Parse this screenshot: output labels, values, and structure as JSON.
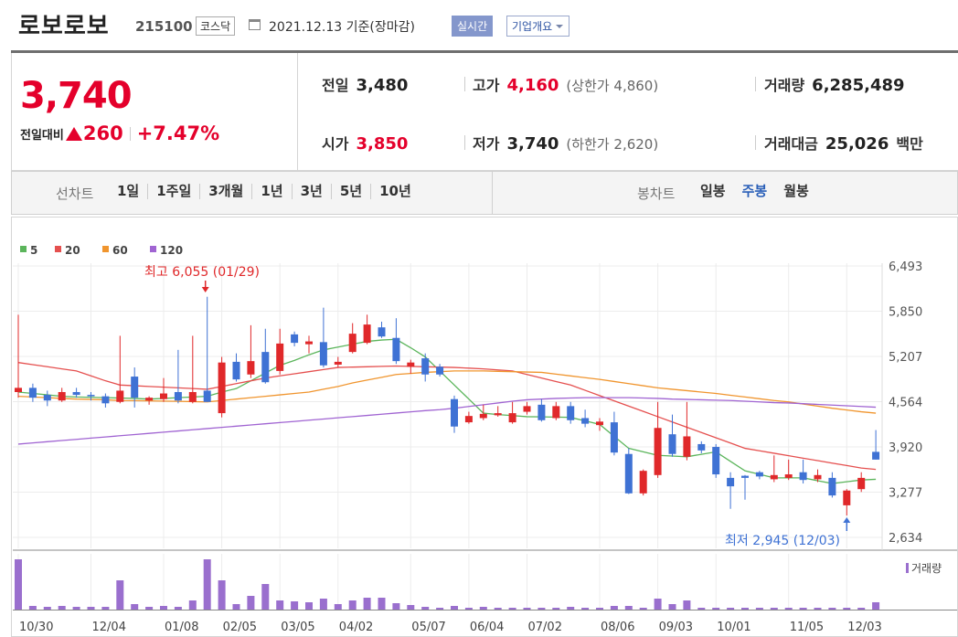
{
  "header": {
    "name": "로보로보",
    "code": "215100",
    "market": "코스닥",
    "date": "2021.12.13 기준(장마감)",
    "realtime": "실시간",
    "overview": "기업개요"
  },
  "quote": {
    "price": "3,740",
    "change_label": "전일대비",
    "change": "260",
    "change_pct": "+7.47%"
  },
  "info": [
    {
      "label": "전일",
      "value": "3,480"
    },
    {
      "label": "고가",
      "value": "4,160",
      "note": "(상한가 4,860)"
    },
    {
      "label": "거래량",
      "value": "6,285,489"
    },
    {
      "label": "시가",
      "value": "3,850"
    },
    {
      "label": "저가",
      "value": "3,740",
      "note": "(하한가 2,620)"
    },
    {
      "label": "거래대금",
      "value": "25,026",
      "unit": "백만"
    }
  ],
  "tabs": {
    "line_label": "선차트",
    "line_periods": [
      "1일",
      "1주일",
      "3개월",
      "1년",
      "3년",
      "5년",
      "10년"
    ],
    "candle_label": "봉차트",
    "candle_periods": [
      "일봉",
      "주봉",
      "월봉"
    ]
  },
  "chart_data": {
    "type": "candlestick",
    "categories": [
      "10/30",
      null,
      null,
      null,
      null,
      "12/04",
      null,
      null,
      null,
      null,
      "01/08",
      null,
      null,
      null,
      "02/05",
      null,
      null,
      null,
      "03/05",
      null,
      null,
      null,
      "04/02",
      null,
      null,
      null,
      null,
      "05/07",
      null,
      null,
      null,
      "06/04",
      null,
      null,
      null,
      "07/02",
      null,
      null,
      null,
      null,
      "08/06",
      null,
      null,
      null,
      "09/03",
      null,
      null,
      null,
      "10/01",
      null,
      null,
      null,
      null,
      "11/05",
      null,
      null,
      null,
      "12/03",
      null,
      null
    ],
    "open": [
      4700,
      4760,
      4660,
      4580,
      4700,
      4660,
      4640,
      4560,
      4920,
      4580,
      4600,
      4700,
      4560,
      4720,
      4400,
      5130,
      4950,
      5270,
      5000,
      5520,
      5380,
      5410,
      5090,
      5270,
      5400,
      5620,
      5470,
      5060,
      5180,
      5060,
      4600,
      4270,
      4330,
      4370,
      4270,
      4420,
      4520,
      4330,
      4500,
      4330,
      4230,
      4270,
      3820,
      3260,
      3520,
      4100,
      3780,
      3960,
      3920,
      3480,
      3510,
      3560,
      3460,
      3480,
      3560,
      3460,
      3480,
      3090,
      3320,
      3850
    ],
    "high": [
      5800,
      4820,
      4720,
      4760,
      4760,
      4700,
      4680,
      5500,
      5050,
      4640,
      4900,
      5300,
      5500,
      6055,
      5200,
      5250,
      5650,
      5600,
      5600,
      5560,
      5500,
      5900,
      5200,
      5680,
      5800,
      5700,
      5750,
      5160,
      5250,
      5100,
      4650,
      4420,
      4520,
      4500,
      4560,
      4560,
      4600,
      4560,
      4560,
      4450,
      4330,
      4420,
      3900,
      3600,
      4560,
      4380,
      4560,
      4000,
      3960,
      3560,
      3520,
      3580,
      3800,
      3740,
      3740,
      3600,
      3560,
      3320,
      3560,
      4160
    ],
    "low": [
      4620,
      4560,
      4500,
      4560,
      4620,
      4580,
      4480,
      4540,
      4480,
      4520,
      4560,
      4540,
      4540,
      4560,
      4340,
      4850,
      4900,
      4820,
      4950,
      5350,
      5250,
      5050,
      5050,
      5250,
      5380,
      5470,
      5100,
      4960,
      4850,
      4920,
      4120,
      4250,
      4300,
      4350,
      4250,
      4380,
      4280,
      4300,
      4250,
      4200,
      4150,
      3800,
      3250,
      3230,
      3480,
      3780,
      3730,
      3830,
      3480,
      3040,
      3170,
      3460,
      3420,
      3450,
      3400,
      3420,
      3200,
      2945,
      3280,
      3740
    ],
    "close": [
      4760,
      4620,
      4580,
      4700,
      4660,
      4640,
      4540,
      4720,
      4620,
      4620,
      4680,
      4580,
      4700,
      4560,
      5120,
      4880,
      5140,
      4840,
      5390,
      5400,
      5420,
      5080,
      5130,
      5530,
      5660,
      5490,
      5140,
      5120,
      4950,
      4950,
      4210,
      4360,
      4390,
      4400,
      4400,
      4500,
      4300,
      4500,
      4300,
      4250,
      4280,
      3840,
      3260,
      3580,
      4190,
      3820,
      4070,
      3870,
      3530,
      3360,
      3480,
      3500,
      3520,
      3530,
      3450,
      3520,
      3230,
      3300,
      3480,
      3740
    ],
    "volume": [
      43175000,
      3140000,
      2355000,
      3140000,
      2355000,
      2355000,
      2355000,
      25120000,
      4710000,
      2355000,
      3140000,
      2355000,
      7850000,
      43175000,
      25120000,
      4710000,
      11775000,
      21980000,
      7850000,
      7065000,
      6280000,
      9420000,
      4710000,
      7850000,
      10205000,
      10205000,
      5495000,
      3925000,
      2355000,
      1570000,
      3140000,
      1570000,
      2355000,
      1570000,
      1570000,
      1570000,
      1570000,
      1570000,
      2355000,
      1570000,
      1570000,
      3140000,
      3140000,
      1570000,
      9420000,
      4710000,
      7850000,
      1570000,
      1570000,
      1570000,
      1570000,
      1570000,
      1570000,
      1570000,
      1570000,
      1570000,
      1570000,
      1570000,
      1570000,
      6285489
    ],
    "up_color": "#e0282a",
    "down_color": "#3f72d4",
    "volume_color": "#9a6fce",
    "volume_label": "거래량",
    "moving_averages": [
      {
        "name": "5",
        "color": "#5bb55b",
        "values": [
          4700,
          4680,
          4660,
          4640,
          4630,
          4625,
          4620,
          4615,
          4610,
          4600,
          4610,
          4620,
          4630,
          4640,
          4700,
          4750,
          4860,
          4970,
          5080,
          5150,
          5230,
          5300,
          5340,
          5380,
          5420,
          5440,
          5450,
          5330,
          5200,
          5000,
          4800,
          4600,
          4400,
          4380,
          4365,
          4350,
          4347,
          4344,
          4340,
          4290,
          4240,
          4070,
          3900,
          3850,
          3800,
          3790,
          3780,
          3815,
          3850,
          3715,
          3580,
          3530,
          3480,
          3480,
          3480,
          3440,
          3400,
          3425,
          3450,
          3460
        ]
      },
      {
        "name": "20",
        "color": "#e5504f",
        "values": [
          5120,
          5090,
          5060,
          5030,
          5000,
          4930,
          4860,
          4800,
          4790,
          4780,
          4770,
          4760,
          4750,
          4740,
          4780,
          4820,
          4860,
          4900,
          4930,
          4960,
          4990,
          5020,
          5050,
          5055,
          5060,
          5065,
          5070,
          5065,
          5060,
          5055,
          5050,
          5040,
          5030,
          5015,
          5000,
          4950,
          4900,
          4850,
          4800,
          4725,
          4650,
          4575,
          4500,
          4425,
          4350,
          4275,
          4200,
          4125,
          4050,
          3975,
          3900,
          3865,
          3830,
          3795,
          3760,
          3725,
          3690,
          3655,
          3620,
          3600
        ]
      },
      {
        "name": "60",
        "color": "#f0952e",
        "values": [
          4640,
          4630,
          4620,
          4610,
          4600,
          4595,
          4590,
          4580,
          4578,
          4575,
          4572,
          4568,
          4564,
          4560,
          4580,
          4600,
          4620,
          4640,
          4660,
          4680,
          4700,
          4740,
          4780,
          4830,
          4870,
          4910,
          4950,
          4965,
          4980,
          4990,
          5000,
          5000,
          5000,
          4995,
          4990,
          4985,
          4980,
          4955,
          4930,
          4905,
          4880,
          4850,
          4820,
          4790,
          4760,
          4740,
          4720,
          4700,
          4680,
          4655,
          4630,
          4605,
          4580,
          4560,
          4530,
          4500,
          4470,
          4445,
          4420,
          4400
        ]
      },
      {
        "name": "120",
        "color": "#a064d2",
        "values": [
          3960,
          3977,
          3994,
          4011,
          4028,
          4045,
          4062,
          4079,
          4096,
          4113,
          4130,
          4147,
          4164,
          4181,
          4198,
          4215,
          4232,
          4249,
          4266,
          4283,
          4300,
          4317,
          4334,
          4351,
          4368,
          4385,
          4402,
          4419,
          4436,
          4450,
          4470,
          4495,
          4520,
          4545,
          4570,
          4590,
          4600,
          4610,
          4615,
          4620,
          4620,
          4620,
          4620,
          4615,
          4610,
          4600,
          4595,
          4590,
          4585,
          4580,
          4570,
          4560,
          4550,
          4545,
          4535,
          4525,
          4515,
          4505,
          4495,
          4485
        ]
      }
    ],
    "annotations": [
      {
        "text": "최고 6,055 (01/29)",
        "color": "#e0282a"
      },
      {
        "text": "최저 2,945 (12/03)",
        "color": "#3f72d4"
      }
    ],
    "ylim": [
      2634,
      6493
    ],
    "yticks": [
      {
        "value": 6493,
        "label": "6,493"
      },
      {
        "value": 5850,
        "label": "5,850"
      },
      {
        "value": 5207,
        "label": "5,207"
      },
      {
        "value": 4564,
        "label": "4,564"
      },
      {
        "value": 3920,
        "label": "3,920"
      },
      {
        "value": 3277,
        "label": "3,277"
      },
      {
        "value": 2634,
        "label": "2,634"
      }
    ],
    "grid": true
  }
}
